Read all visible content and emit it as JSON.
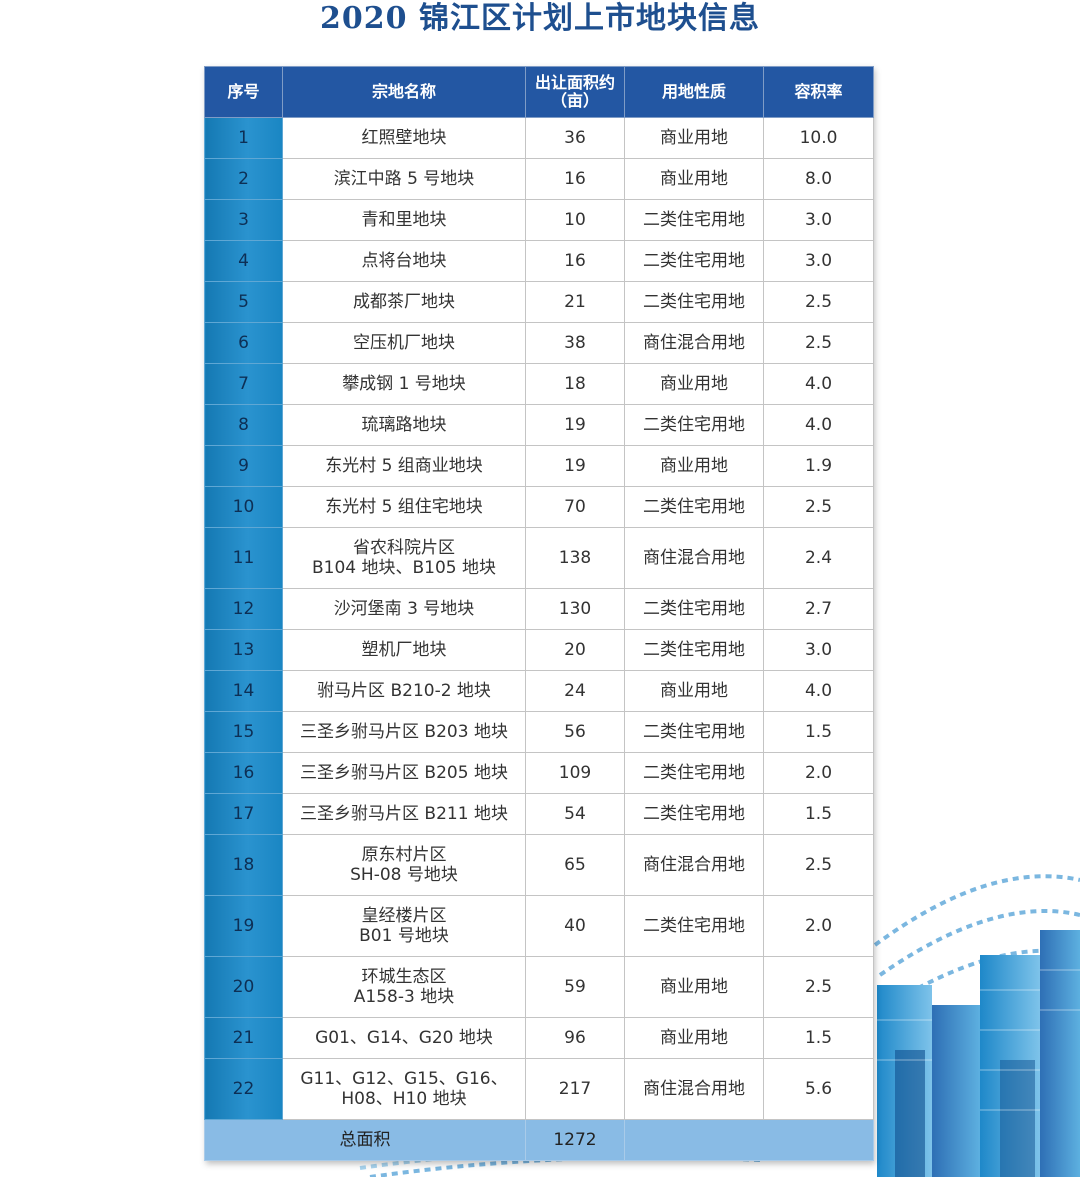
{
  "title": "2020 锦江区计划上市地块信息",
  "headers": {
    "index": "序号",
    "name": "宗地名称",
    "area": "出让面积约",
    "area_unit": "（亩）",
    "usage": "用地性质",
    "far": "容积率"
  },
  "rows": [
    {
      "index": "1",
      "name": [
        "红照壁地块"
      ],
      "area": "36",
      "usage": "商业用地",
      "far": "10.0"
    },
    {
      "index": "2",
      "name": [
        "滨江中路 5 号地块"
      ],
      "area": "16",
      "usage": "商业用地",
      "far": "8.0"
    },
    {
      "index": "3",
      "name": [
        "青和里地块"
      ],
      "area": "10",
      "usage": "二类住宅用地",
      "far": "3.0"
    },
    {
      "index": "4",
      "name": [
        "点将台地块"
      ],
      "area": "16",
      "usage": "二类住宅用地",
      "far": "3.0"
    },
    {
      "index": "5",
      "name": [
        "成都茶厂地块"
      ],
      "area": "21",
      "usage": "二类住宅用地",
      "far": "2.5"
    },
    {
      "index": "6",
      "name": [
        "空压机厂地块"
      ],
      "area": "38",
      "usage": "商住混合用地",
      "far": "2.5"
    },
    {
      "index": "7",
      "name": [
        "攀成钢 1 号地块"
      ],
      "area": "18",
      "usage": "商业用地",
      "far": "4.0"
    },
    {
      "index": "8",
      "name": [
        "琉璃路地块"
      ],
      "area": "19",
      "usage": "二类住宅用地",
      "far": "4.0"
    },
    {
      "index": "9",
      "name": [
        "东光村 5 组商业地块"
      ],
      "area": "19",
      "usage": "商业用地",
      "far": "1.9"
    },
    {
      "index": "10",
      "name": [
        "东光村 5 组住宅地块"
      ],
      "area": "70",
      "usage": "二类住宅用地",
      "far": "2.5"
    },
    {
      "index": "11",
      "name": [
        "省农科院片区",
        "B104 地块、B105 地块"
      ],
      "area": "138",
      "usage": "商住混合用地",
      "far": "2.4"
    },
    {
      "index": "12",
      "name": [
        "沙河堡南 3 号地块"
      ],
      "area": "130",
      "usage": "二类住宅用地",
      "far": "2.7"
    },
    {
      "index": "13",
      "name": [
        "塑机厂地块"
      ],
      "area": "20",
      "usage": "二类住宅用地",
      "far": "3.0"
    },
    {
      "index": "14",
      "name": [
        "驸马片区 B210-2 地块"
      ],
      "area": "24",
      "usage": "商业用地",
      "far": "4.0"
    },
    {
      "index": "15",
      "name": [
        "三圣乡驸马片区 B203 地块"
      ],
      "area": "56",
      "usage": "二类住宅用地",
      "far": "1.5"
    },
    {
      "index": "16",
      "name": [
        "三圣乡驸马片区 B205 地块"
      ],
      "area": "109",
      "usage": "二类住宅用地",
      "far": "2.0"
    },
    {
      "index": "17",
      "name": [
        "三圣乡驸马片区 B211 地块"
      ],
      "area": "54",
      "usage": "二类住宅用地",
      "far": "1.5"
    },
    {
      "index": "18",
      "name": [
        "原东村片区",
        "SH-08 号地块"
      ],
      "area": "65",
      "usage": "商住混合用地",
      "far": "2.5"
    },
    {
      "index": "19",
      "name": [
        "皇经楼片区",
        "B01 号地块"
      ],
      "area": "40",
      "usage": "二类住宅用地",
      "far": "2.0"
    },
    {
      "index": "20",
      "name": [
        "环城生态区",
        "A158-3 地块"
      ],
      "area": "59",
      "usage": "商业用地",
      "far": "2.5"
    },
    {
      "index": "21",
      "name": [
        "G01、G14、G20 地块"
      ],
      "area": "96",
      "usage": "商业用地",
      "far": "1.5"
    },
    {
      "index": "22",
      "name": [
        "G11、G12、G15、G16、",
        "H08、H10 地块"
      ],
      "area": "217",
      "usage": "商住混合用地",
      "far": "5.6"
    }
  ],
  "total": {
    "label": "总面积",
    "area": "1272"
  },
  "decor_colors": {
    "title": "#1e4f8f",
    "header": "#2357a3",
    "index_col": "#1a86c3",
    "total_row": "#89bbe5"
  }
}
